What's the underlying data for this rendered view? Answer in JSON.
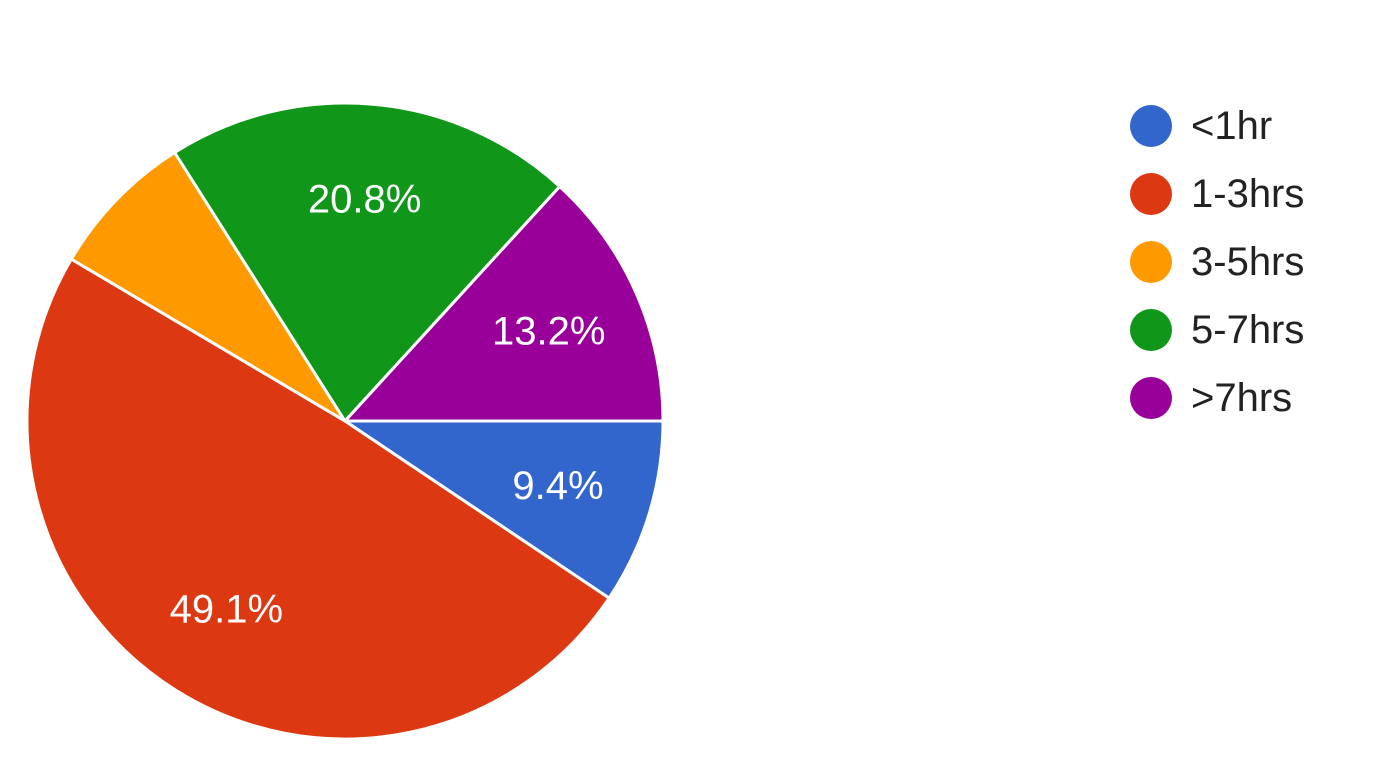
{
  "chart_data": {
    "type": "pie",
    "title": "",
    "legend_position": "right",
    "slices": [
      {
        "label": "<1hr",
        "value": 9.4,
        "display": "9.4%",
        "color": "#3366cc"
      },
      {
        "label": "1-3hrs",
        "value": 49.1,
        "display": "49.1%",
        "color": "#dc3912"
      },
      {
        "label": "3-5hrs",
        "value": 7.5,
        "display": "",
        "color": "#ff9900"
      },
      {
        "label": "5-7hrs",
        "value": 20.8,
        "display": "20.8%",
        "color": "#109618"
      },
      {
        "label": ">7hrs",
        "value": 13.2,
        "display": "13.2%",
        "color": "#990099"
      }
    ]
  }
}
